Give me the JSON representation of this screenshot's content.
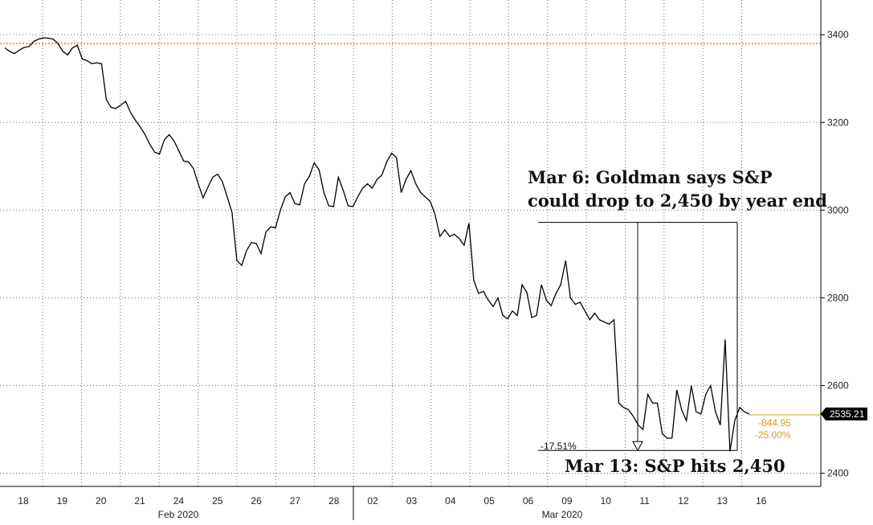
{
  "chart_data": {
    "type": "line",
    "series": [
      {
        "values": [
          3370,
          3362,
          3357,
          3365,
          3371,
          3373,
          3385,
          3390,
          3393,
          3392,
          3390,
          3380,
          3362,
          3354,
          3370,
          3376,
          3345,
          3341,
          3334,
          3336,
          3334,
          3252,
          3234,
          3232,
          3240,
          3248,
          3223,
          3205,
          3190,
          3172,
          3150,
          3132,
          3128,
          3160,
          3172,
          3158,
          3135,
          3112,
          3110,
          3095,
          3060,
          3028,
          3052,
          3075,
          3082,
          3065,
          3030,
          2995,
          2885,
          2874,
          2908,
          2926,
          2924,
          2901,
          2950,
          2962,
          2960,
          3000,
          3030,
          3040,
          3015,
          3012,
          3060,
          3077,
          3108,
          3092,
          3040,
          3010,
          3008,
          3075,
          3045,
          3010,
          3008,
          3030,
          3050,
          3060,
          3050,
          3070,
          3080,
          3110,
          3130,
          3120,
          3040,
          3070,
          3090,
          3060,
          3040,
          3030,
          3020,
          2990,
          2940,
          2955,
          2940,
          2945,
          2935,
          2920,
          2970,
          2840,
          2810,
          2815,
          2795,
          2780,
          2800,
          2760,
          2752,
          2770,
          2760,
          2830,
          2812,
          2755,
          2760,
          2830,
          2795,
          2782,
          2810,
          2830,
          2885,
          2800,
          2785,
          2790,
          2770,
          2750,
          2765,
          2750,
          2745,
          2740,
          2750,
          2560,
          2550,
          2545,
          2530,
          2510,
          2500,
          2580,
          2560,
          2560,
          2490,
          2480,
          2480,
          2590,
          2545,
          2520,
          2600,
          2540,
          2535,
          2580,
          2600,
          2540,
          2510,
          2705,
          2450,
          2520,
          2550,
          2540,
          2535
        ]
      }
    ],
    "y_ticks": [
      "2400",
      "2600",
      "2800",
      "3000",
      "3200",
      "3400"
    ],
    "ylim": [
      2370,
      3470
    ],
    "x_ticks": [
      "18",
      "19",
      "20",
      "21",
      "24",
      "25",
      "26",
      "27",
      "28",
      "02",
      "03",
      "04",
      "05",
      "06",
      "09",
      "10",
      "11",
      "12",
      "13",
      "16"
    ],
    "months": [
      "Feb 2020",
      "Mar 2020"
    ],
    "reference_line": {
      "value": 3380,
      "color": "#f0a030"
    },
    "last_value": "2535.21",
    "change_abs": "-844.95",
    "change_pct": "-25.00%",
    "drop_label": "-17.51%",
    "drop_from": 2972,
    "drop_to": 2452,
    "annotation_1": [
      "Mar 6: Goldman says S&P",
      "could drop to 2,450 by year end"
    ],
    "annotation_2": "Mar 13: S&P hits 2,450",
    "grid": true,
    "colors": {
      "line": "#000000",
      "reference": "#f0a030",
      "change": "#d99a1f",
      "badge": "#000000"
    }
  }
}
